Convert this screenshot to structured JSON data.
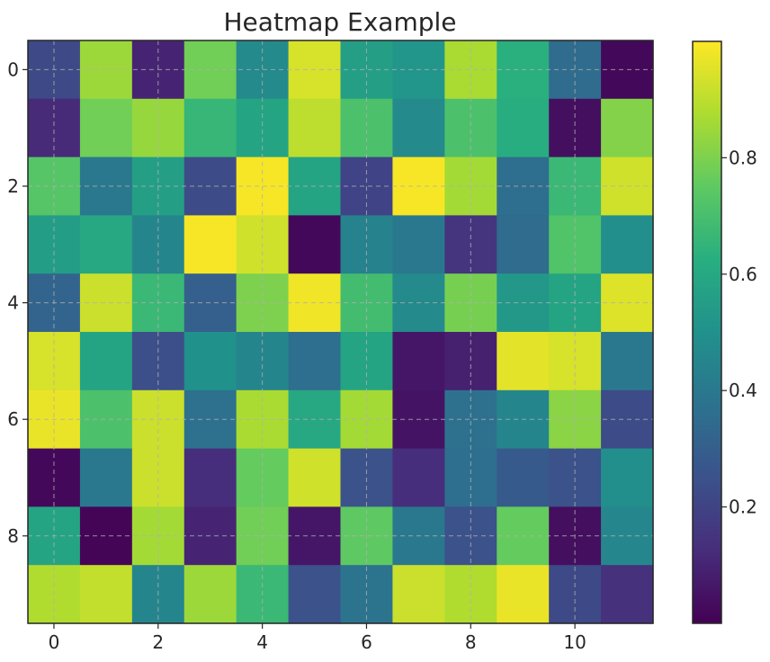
{
  "chart_data": {
    "type": "heatmap",
    "title": "Heatmap Example",
    "xlabel": "",
    "ylabel": "",
    "colormap": "viridis",
    "grid": true,
    "x_ticks": [
      0,
      2,
      4,
      6,
      8,
      10
    ],
    "y_ticks": [
      0,
      2,
      4,
      6,
      8
    ],
    "colorbar_ticks": [
      0.2,
      0.4,
      0.6,
      0.8
    ],
    "colorbar_range": [
      0.0,
      1.0
    ],
    "values": [
      [
        0.22,
        0.85,
        0.1,
        0.78,
        0.47,
        0.94,
        0.56,
        0.52,
        0.87,
        0.63,
        0.35,
        0.02
      ],
      [
        0.12,
        0.78,
        0.84,
        0.66,
        0.58,
        0.9,
        0.71,
        0.47,
        0.71,
        0.62,
        0.04,
        0.81
      ],
      [
        0.73,
        0.4,
        0.56,
        0.23,
        0.99,
        0.58,
        0.2,
        0.99,
        0.86,
        0.36,
        0.67,
        0.93
      ],
      [
        0.55,
        0.6,
        0.45,
        0.99,
        0.93,
        0.02,
        0.44,
        0.4,
        0.15,
        0.35,
        0.72,
        0.49
      ],
      [
        0.32,
        0.92,
        0.67,
        0.3,
        0.8,
        0.98,
        0.69,
        0.47,
        0.79,
        0.53,
        0.58,
        0.95
      ],
      [
        0.94,
        0.58,
        0.24,
        0.5,
        0.45,
        0.36,
        0.58,
        0.06,
        0.09,
        0.96,
        0.94,
        0.4
      ],
      [
        0.97,
        0.71,
        0.92,
        0.37,
        0.87,
        0.6,
        0.86,
        0.05,
        0.37,
        0.45,
        0.82,
        0.23
      ],
      [
        0.02,
        0.4,
        0.92,
        0.13,
        0.76,
        0.93,
        0.25,
        0.13,
        0.36,
        0.28,
        0.25,
        0.49
      ],
      [
        0.58,
        0.01,
        0.86,
        0.1,
        0.78,
        0.06,
        0.75,
        0.4,
        0.25,
        0.76,
        0.04,
        0.46
      ],
      [
        0.88,
        0.91,
        0.45,
        0.85,
        0.67,
        0.25,
        0.38,
        0.92,
        0.88,
        0.97,
        0.22,
        0.14
      ]
    ]
  }
}
